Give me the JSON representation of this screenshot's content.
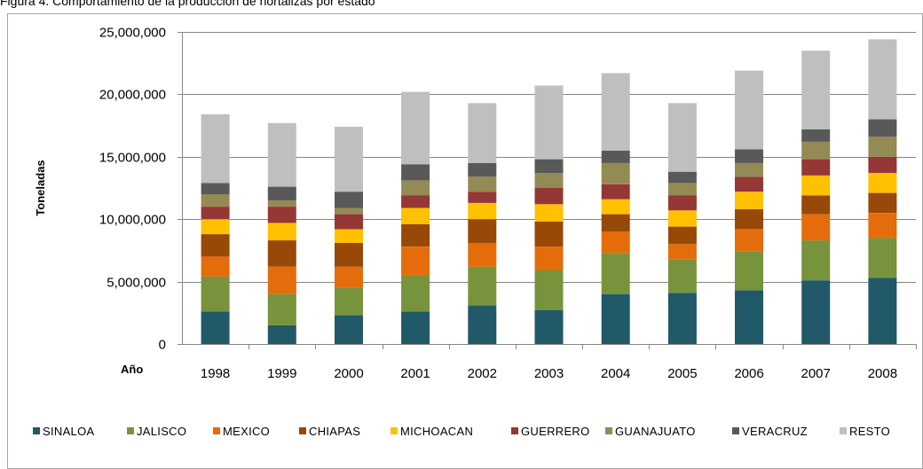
{
  "caption": "Figura 4. Comportamiento de la producción de hortalizas por estado",
  "chart_data": {
    "type": "bar",
    "stacked": true,
    "categories": [
      "1998",
      "1999",
      "2000",
      "2001",
      "2002",
      "2003",
      "2004",
      "2005",
      "2006",
      "2007",
      "2008"
    ],
    "x_axis_label": "Año",
    "ylabel": "Toneladas",
    "ylim": [
      0,
      25000000
    ],
    "yticks": [
      0,
      5000000,
      10000000,
      15000000,
      20000000,
      25000000
    ],
    "ytick_labels": [
      "0",
      "5,000,000",
      "10,000,000",
      "15,000,000",
      "20,000,000",
      "25,000,000"
    ],
    "grid": true,
    "legend_position": "bottom",
    "series": [
      {
        "name": "SINALOA",
        "color": "#215968",
        "values": [
          2600000,
          1500000,
          2300000,
          2600000,
          3100000,
          2700000,
          4000000,
          4100000,
          4300000,
          5100000,
          5300000
        ]
      },
      {
        "name": "JALISCO",
        "color": "#77933c",
        "values": [
          2800000,
          2500000,
          2200000,
          2900000,
          3100000,
          3200000,
          3300000,
          2700000,
          3100000,
          3200000,
          3200000
        ]
      },
      {
        "name": "MEXICO",
        "color": "#e46c0a",
        "values": [
          1600000,
          2200000,
          1700000,
          2300000,
          1900000,
          1900000,
          1700000,
          1200000,
          1800000,
          2100000,
          2000000
        ]
      },
      {
        "name": "CHIAPAS",
        "color": "#984807",
        "values": [
          1800000,
          2100000,
          1900000,
          1800000,
          1900000,
          2000000,
          1400000,
          1400000,
          1600000,
          1500000,
          1600000
        ]
      },
      {
        "name": "MICHOACAN",
        "color": "#ffc000",
        "values": [
          1200000,
          1400000,
          1100000,
          1300000,
          1300000,
          1400000,
          1200000,
          1300000,
          1400000,
          1600000,
          1600000
        ]
      },
      {
        "name": "GUERRERO",
        "color": "#953735",
        "values": [
          1000000,
          1300000,
          1200000,
          1000000,
          900000,
          1300000,
          1200000,
          1200000,
          1200000,
          1300000,
          1300000
        ]
      },
      {
        "name": "GUANAJUATO",
        "color": "#948a54",
        "values": [
          1000000,
          500000,
          500000,
          1200000,
          1200000,
          1200000,
          1700000,
          1000000,
          1100000,
          1400000,
          1600000
        ]
      },
      {
        "name": "VERACRUZ",
        "color": "#595959",
        "values": [
          900000,
          1100000,
          1300000,
          1300000,
          1100000,
          1100000,
          1000000,
          900000,
          1100000,
          1000000,
          1400000
        ]
      },
      {
        "name": "RESTO",
        "color": "#bfbfbf",
        "values": [
          5500000,
          5100000,
          5200000,
          5800000,
          4800000,
          5900000,
          6200000,
          5500000,
          6300000,
          6300000,
          6400000
        ]
      }
    ]
  }
}
